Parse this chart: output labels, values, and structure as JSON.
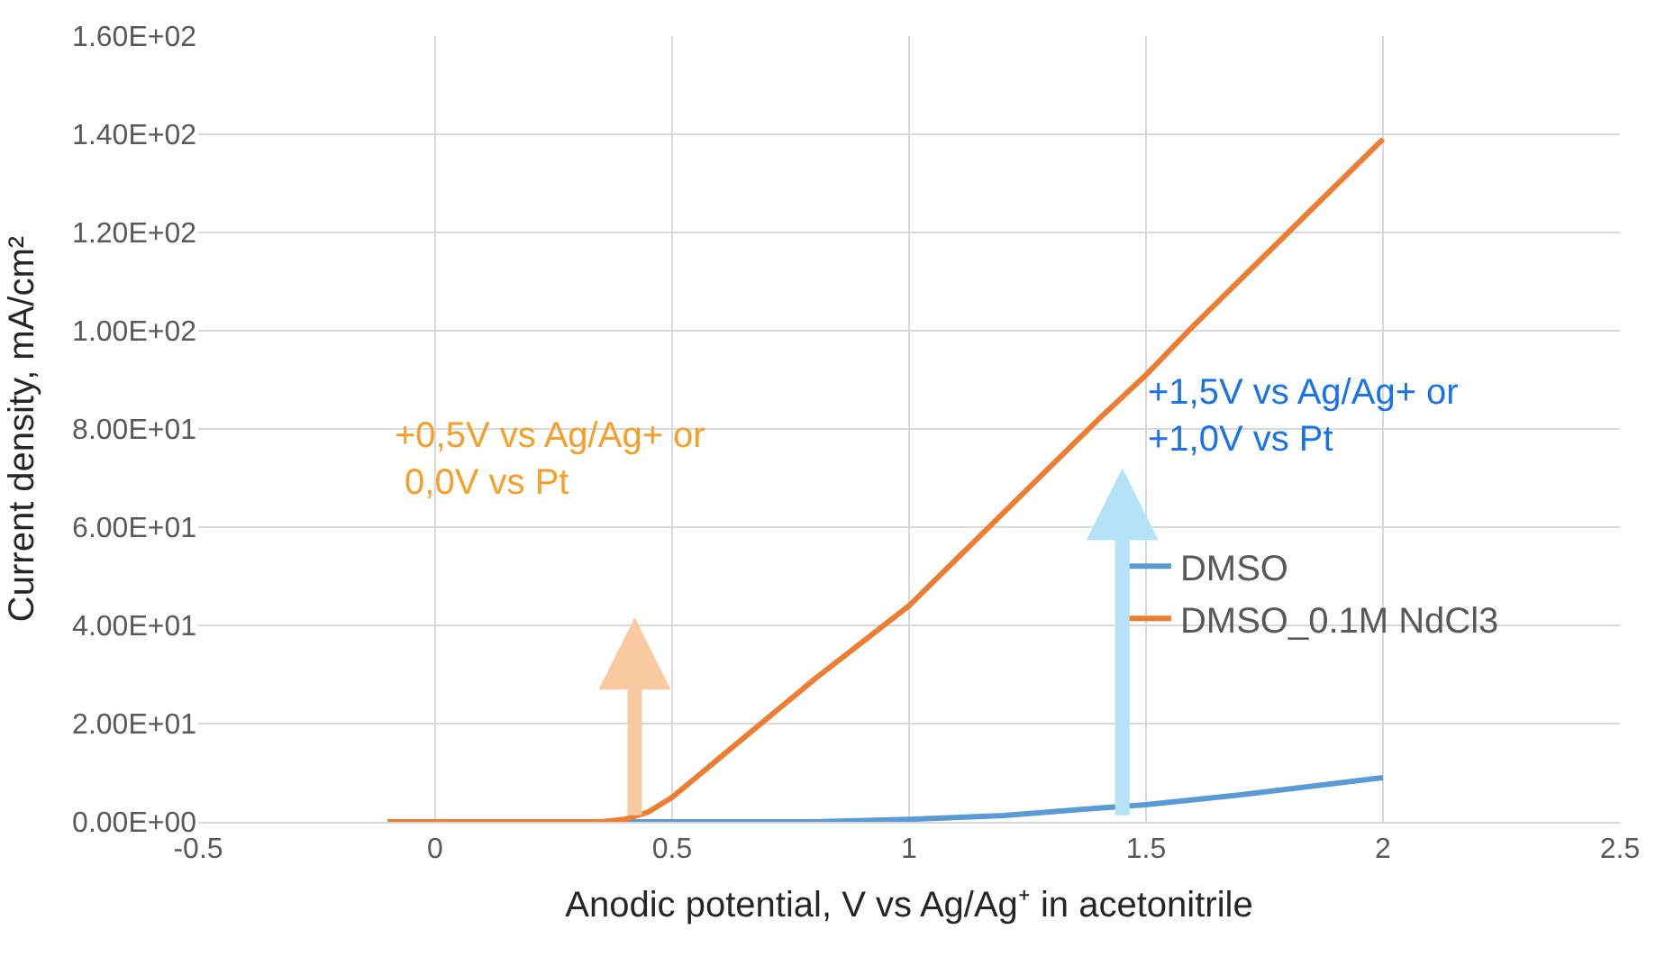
{
  "chart_data": {
    "type": "line",
    "xlabel": "Anodic potential, V vs Ag/Ag⁺ in acetonitrile",
    "ylabel": "Current density, mA/cm²",
    "xlim": [
      -0.5,
      2.5
    ],
    "xticks": [
      -0.5,
      0,
      0.5,
      1,
      1.5,
      2,
      2.5
    ],
    "ylim": [
      0,
      160
    ],
    "yticks": [
      {
        "value": 0,
        "label": "0.00E+00"
      },
      {
        "value": 20,
        "label": "2.00E+01"
      },
      {
        "value": 40,
        "label": "4.00E+01"
      },
      {
        "value": 60,
        "label": "6.00E+01"
      },
      {
        "value": 80,
        "label": "8.00E+01"
      },
      {
        "value": 100,
        "label": "1.00E+02"
      },
      {
        "value": 120,
        "label": "1.20E+02"
      },
      {
        "value": 140,
        "label": "1.40E+02"
      },
      {
        "value": 160,
        "label": "1.60E+02"
      }
    ],
    "grid": true,
    "legend": "right",
    "marker": "none",
    "line_style": "solid",
    "series": [
      {
        "name": "DMSO",
        "color": "#5b9bd5",
        "x": [
          -0.1,
          0.2,
          0.5,
          0.8,
          1.0,
          1.2,
          1.4,
          1.5,
          1.7,
          2.0
        ],
        "values": [
          0,
          0,
          0,
          0,
          0.5,
          1.3,
          2.8,
          3.5,
          5.5,
          9
        ]
      },
      {
        "name": "DMSO_0.1M NdCl3",
        "color": "#ed7d31",
        "x": [
          -0.1,
          0.2,
          0.35,
          0.4,
          0.45,
          0.5,
          0.55,
          0.6,
          0.7,
          0.8,
          1.0,
          1.2,
          1.4,
          1.5,
          1.6,
          1.8,
          2.0
        ],
        "values": [
          0,
          0,
          0,
          0.5,
          2,
          5,
          9,
          13,
          21,
          29,
          44,
          63,
          82,
          91,
          101,
          120,
          139
        ]
      }
    ],
    "annotations": [
      "+0,5V vs Ag/Ag+ or\n 0,0V vs Pt",
      "+1,5V vs Ag/Ag+ or\n+1,0V vs Pt"
    ]
  }
}
